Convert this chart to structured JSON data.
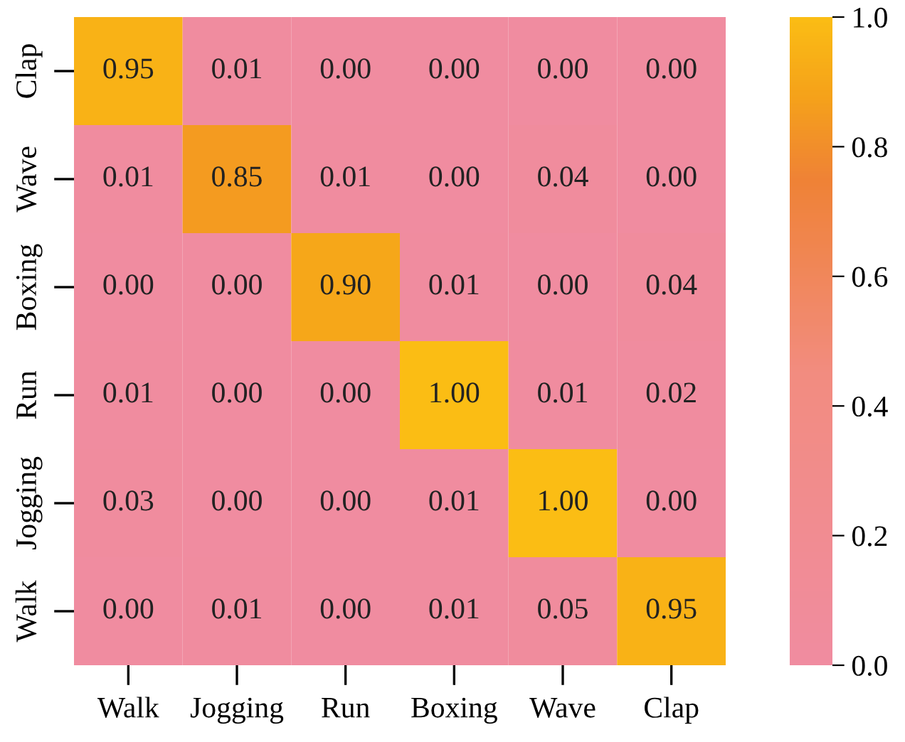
{
  "chart_data": {
    "type": "heatmap",
    "categories": [
      "Walk",
      "Jogging",
      "Run",
      "Boxing",
      "Wave",
      "Clap"
    ],
    "y_categories": [
      "Clap",
      "Wave",
      "Boxing",
      "Run",
      "Jogging",
      "Walk"
    ],
    "cells": [
      [
        0.95,
        0.01,
        0.0,
        0.0,
        0.0,
        0.0
      ],
      [
        0.01,
        0.85,
        0.01,
        0.0,
        0.04,
        0.0
      ],
      [
        0.0,
        0.0,
        0.9,
        0.01,
        0.0,
        0.04
      ],
      [
        0.01,
        0.0,
        0.0,
        1.0,
        0.01,
        0.02
      ],
      [
        0.03,
        0.0,
        0.0,
        0.01,
        1.0,
        0.0
      ],
      [
        0.0,
        0.01,
        0.0,
        0.01,
        0.05,
        0.95
      ]
    ],
    "cell_labels": [
      [
        "0.95",
        "0.01",
        "0.00",
        "0.00",
        "0.00",
        "0.00"
      ],
      [
        "0.01",
        "0.85",
        "0.01",
        "0.00",
        "0.04",
        "0.00"
      ],
      [
        "0.00",
        "0.00",
        "0.90",
        "0.01",
        "0.00",
        "0.04"
      ],
      [
        "0.01",
        "0.00",
        "0.00",
        "1.00",
        "0.01",
        "0.02"
      ],
      [
        "0.03",
        "0.00",
        "0.00",
        "0.01",
        "1.00",
        "0.00"
      ],
      [
        "0.00",
        "0.01",
        "0.00",
        "0.01",
        "0.05",
        "0.95"
      ]
    ],
    "clim": [
      0,
      1
    ],
    "cticks": [
      {
        "value": 0,
        "label": "0.0"
      },
      {
        "value": 0.2,
        "label": "0.2"
      },
      {
        "value": 0.4,
        "label": "0.4"
      },
      {
        "value": 0.6,
        "label": "0.6"
      },
      {
        "value": 0.8,
        "label": "0.8"
      },
      {
        "value": 1,
        "label": "1.0"
      }
    ]
  }
}
